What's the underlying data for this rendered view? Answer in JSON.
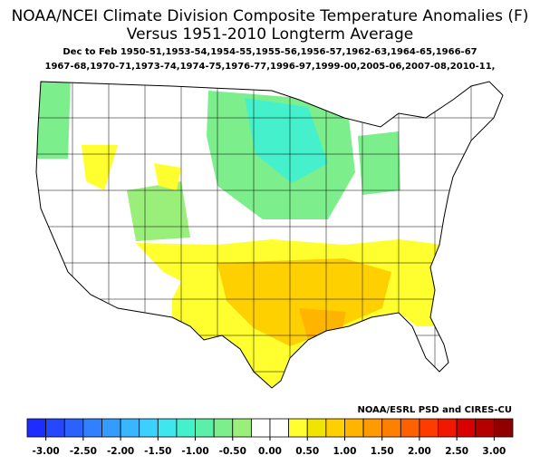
{
  "header": {
    "title": "NOAA/NCEI Climate Division Composite Temperature Anomalies (F)",
    "title2": "Versus 1951-2010 Longterm Average",
    "subtitle": "Dec to Feb  1950-51,1953-54,1954-55,1955-56,1956-57,1962-63,1964-65,1966-67",
    "subtitle2": "1967-68,1970-71,1973-74,1974-75,1976-77,1996-97,1999-00,2005-06,2007-08,2010-11,"
  },
  "credit": "NOAA/ESRL PSD and CIRES-CU",
  "colorbar": {
    "lim": [
      -3.25,
      3.25
    ],
    "colors": [
      "#1e2dff",
      "#2547ff",
      "#2b62ff",
      "#3180ff",
      "#359cff",
      "#38b6ff",
      "#3cd0ff",
      "#3ee6f0",
      "#45f0cc",
      "#5cefa8",
      "#7cee8c",
      "#9aee7a",
      "#ffffff",
      "#ffffff",
      "#ffff30",
      "#f0e400",
      "#ffd000",
      "#ffb400",
      "#ff9a00",
      "#ff8000",
      "#ff6000",
      "#ff3c00",
      "#f01800",
      "#d80000",
      "#b40000",
      "#900000"
    ],
    "ticks": [
      {
        "value": -3,
        "label": "-3.00"
      },
      {
        "value": -2.5,
        "label": "-2.50"
      },
      {
        "value": -2,
        "label": "-2.00"
      },
      {
        "value": -1.5,
        "label": "-1.50"
      },
      {
        "value": -1,
        "label": "-1.00"
      },
      {
        "value": -0.5,
        "label": "-0.50"
      },
      {
        "value": 0,
        "label": "0.00"
      },
      {
        "value": 0.5,
        "label": "0.50"
      },
      {
        "value": 1,
        "label": "1.00"
      },
      {
        "value": 1.5,
        "label": "1.50"
      },
      {
        "value": 2,
        "label": "2.00"
      },
      {
        "value": 2.5,
        "label": "2.50"
      },
      {
        "value": 3,
        "label": "3.00"
      }
    ]
  }
}
